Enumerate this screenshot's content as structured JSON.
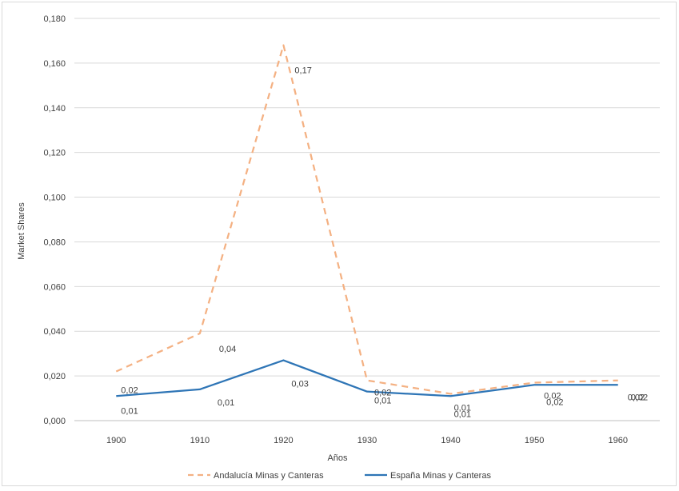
{
  "chart_data": {
    "type": "line",
    "categories": [
      "1900",
      "1910",
      "1920",
      "1930",
      "1940",
      "1950",
      "1960"
    ],
    "series": [
      {
        "name": "Andalucía Minas y Canteras",
        "values": [
          0.022,
          0.039,
          0.168,
          0.018,
          0.012,
          0.017,
          0.018
        ],
        "labels": [
          "0,02",
          "0,04",
          "0,17",
          "0,02",
          "0,01",
          "0,02",
          "0,02"
        ],
        "color": "#f4b183",
        "dash": true
      },
      {
        "name": "España Minas y Canteras",
        "values": [
          0.011,
          0.014,
          0.027,
          0.013,
          0.011,
          0.016,
          0.016
        ],
        "labels": [
          "0,01",
          "0,01",
          "0,03",
          "0,01",
          "0,01",
          "0,02",
          "0,02"
        ],
        "color": "#2e75b6",
        "dash": false
      }
    ],
    "xlabel": "Años",
    "ylabel": "Market Shares",
    "ylim": [
      0,
      0.18
    ],
    "yticks": [
      "0,000",
      "0,020",
      "0,040",
      "0,060",
      "0,080",
      "0,100",
      "0,120",
      "0,140",
      "0,160",
      "0,180"
    ],
    "grid": true,
    "legend": "bottom"
  }
}
